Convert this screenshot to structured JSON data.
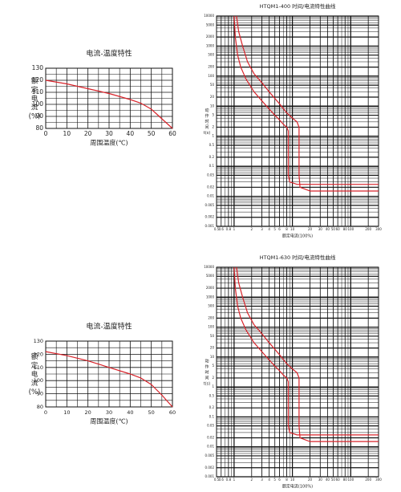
{
  "chart_data": [
    {
      "type": "line",
      "title": "电流-温度特性",
      "x_label": "周围温度(℃)",
      "y_label": "额定电流(%)",
      "xlim": [
        0,
        60
      ],
      "xticks": [
        0,
        10,
        20,
        30,
        40,
        50,
        60
      ],
      "ylim": [
        80,
        130
      ],
      "yticks": [
        80,
        90,
        100,
        110,
        120,
        130
      ],
      "grid": true,
      "series": [
        {
          "color": "#d8232a",
          "x": [
            0,
            10,
            20,
            30,
            40,
            45,
            50,
            55,
            60
          ],
          "values": [
            120,
            117,
            113,
            109,
            104,
            101,
            96,
            88,
            80
          ]
        }
      ]
    },
    {
      "type": "line",
      "title": "HTQM1-400 时间/电流特性曲线",
      "x_label": "额定电流(100%)",
      "y_label": "动作时间t(s)",
      "xscale": "log",
      "yscale": "log",
      "xlim": [
        0.5,
        300
      ],
      "ylim": [
        0.001,
        10000
      ],
      "xticks": [
        0.5,
        0.6,
        0.8,
        1,
        2,
        3,
        4,
        5,
        6,
        8,
        10,
        20,
        30,
        40,
        50,
        60,
        80,
        100,
        200,
        300
      ],
      "yticks": [
        0.001,
        0.002,
        0.005,
        0.01,
        0.02,
        0.05,
        0.1,
        0.2,
        0.5,
        1,
        2,
        5,
        10,
        20,
        50,
        100,
        200,
        500,
        1000,
        2000,
        5000,
        10000
      ],
      "grid": true,
      "series": [
        {
          "color": "#d8232a",
          "x": [
            1.1,
            1.2,
            1.4,
            1.7,
            2.2,
            3,
            4,
            6,
            8,
            10,
            12,
            13,
            13,
            13.5,
            20,
            300
          ],
          "values": [
            10000,
            3000,
            1000,
            300,
            120,
            60,
            30,
            12,
            6,
            4,
            3,
            2,
            0.05,
            0.02,
            0.015,
            0.015
          ]
        },
        {
          "color": "#d8232a",
          "x": [
            1,
            1.05,
            1.15,
            1.3,
            1.6,
            2.2,
            3,
            4,
            5,
            6,
            7,
            8,
            8.5,
            8.5,
            9,
            12,
            300
          ],
          "values": [
            10000,
            2000,
            500,
            200,
            80,
            30,
            15,
            8,
            5,
            3.5,
            2.5,
            2,
            1.5,
            0.05,
            0.03,
            0.025,
            0.025
          ]
        }
      ]
    },
    {
      "type": "line",
      "title": "电流-温度特性",
      "x_label": "周围温度(℃)",
      "y_label": "额定电流(%)",
      "xlim": [
        0,
        60
      ],
      "xticks": [
        0,
        10,
        20,
        30,
        40,
        50,
        60
      ],
      "ylim": [
        80,
        130
      ],
      "yticks": [
        80,
        90,
        100,
        110,
        120,
        130
      ],
      "grid": true,
      "series": [
        {
          "color": "#d8232a",
          "x": [
            0,
            10,
            20,
            30,
            40,
            45,
            50,
            55,
            60
          ],
          "values": [
            122,
            119,
            115,
            110,
            105,
            102,
            97,
            89,
            80
          ]
        }
      ]
    },
    {
      "type": "line",
      "title": "HTQM1-630 时间/电流特性曲线",
      "x_label": "额定电流(100%)",
      "y_label": "动作时间t(s)",
      "xscale": "log",
      "yscale": "log",
      "xlim": [
        0.5,
        300
      ],
      "ylim": [
        0.001,
        10000
      ],
      "xticks": [
        0.5,
        0.6,
        0.8,
        1,
        2,
        3,
        4,
        5,
        6,
        8,
        10,
        20,
        30,
        40,
        50,
        60,
        80,
        100,
        200,
        300
      ],
      "yticks": [
        0.001,
        0.002,
        0.005,
        0.01,
        0.02,
        0.05,
        0.1,
        0.2,
        0.5,
        1,
        2,
        5,
        10,
        20,
        50,
        100,
        200,
        500,
        1000,
        2000,
        5000,
        10000
      ],
      "grid": true,
      "series": [
        {
          "color": "#d8232a",
          "x": [
            1.1,
            1.2,
            1.4,
            1.7,
            2.2,
            3,
            4,
            6,
            8,
            10,
            12,
            13,
            13,
            13.5,
            20,
            300
          ],
          "values": [
            10000,
            3000,
            1000,
            300,
            120,
            60,
            30,
            12,
            6,
            4,
            3,
            2,
            0.05,
            0.02,
            0.015,
            0.015
          ]
        },
        {
          "color": "#d8232a",
          "x": [
            1,
            1.05,
            1.15,
            1.3,
            1.6,
            2.2,
            3,
            4,
            5,
            6,
            7,
            8,
            8.5,
            8.5,
            9,
            12,
            300
          ],
          "values": [
            10000,
            2000,
            500,
            200,
            80,
            30,
            15,
            8,
            5,
            3.5,
            2.5,
            2,
            1.5,
            0.05,
            0.03,
            0.025,
            0.025
          ]
        }
      ]
    }
  ]
}
